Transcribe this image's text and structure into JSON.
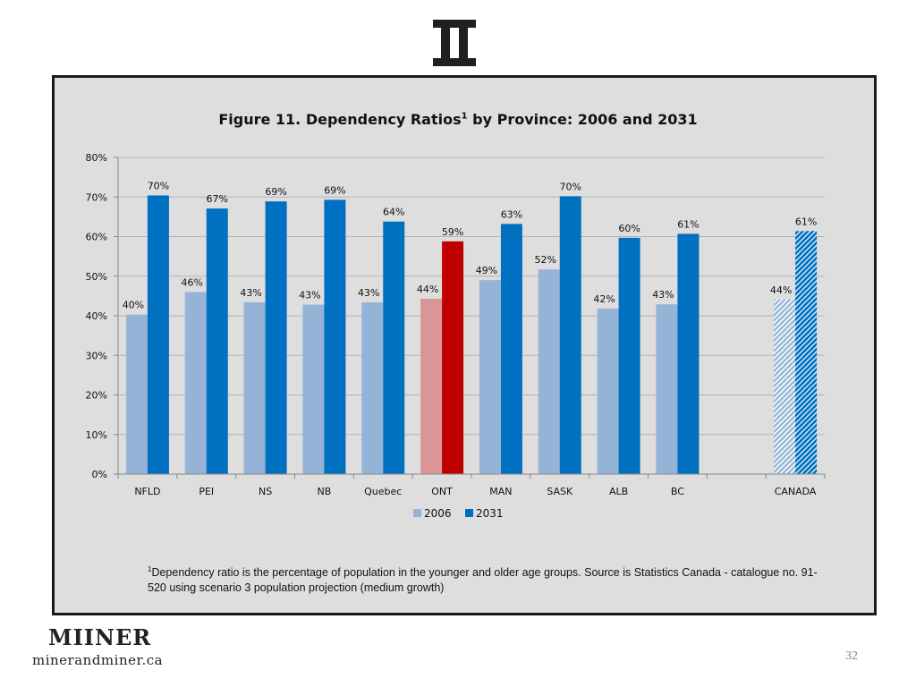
{
  "slide": {
    "page_number": "32",
    "footnote_marker": "1",
    "footnote_text": "Dependency ratio is the percentage of population in the younger and older age groups. Source is Statistics Canada - catalogue no. 91-520 using scenario 3 population projection (medium growth)",
    "brand_name": "MIINER",
    "brand_url": "minerandminer.ca",
    "logo_icon": "roman-numeral-two-logo"
  },
  "chart_data": {
    "type": "bar",
    "title_main": "Figure 11. Dependency Ratios",
    "title_superscript": "1",
    "title_tail": " by Province: 2006 and 2031",
    "xlabel": "",
    "ylabel": "",
    "ylim": [
      0,
      80
    ],
    "y_ticks": [
      "0%",
      "10%",
      "20%",
      "30%",
      "40%",
      "50%",
      "60%",
      "70%",
      "80%"
    ],
    "grid": true,
    "legend_position": "bottom",
    "categories": [
      "NFLD",
      "PEI",
      "NS",
      "NB",
      "Quebec",
      "ONT",
      "MAN",
      "SASK",
      "ALB",
      "BC",
      "",
      "CANADA"
    ],
    "series": [
      {
        "name": "2006",
        "color": "#95b3d7",
        "values": [
          40,
          46,
          43,
          43,
          43,
          44,
          49,
          52,
          42,
          43,
          null,
          44
        ],
        "labels": [
          "40%",
          "46%",
          "43%",
          "43%",
          "43%",
          "44%",
          "49%",
          "52%",
          "42%",
          "43%",
          "",
          "44%"
        ]
      },
      {
        "name": "2031",
        "color": "#0070c0",
        "values": [
          70,
          67,
          69,
          69,
          64,
          59,
          63,
          70,
          60,
          61,
          null,
          61
        ],
        "labels": [
          "70%",
          "67%",
          "69%",
          "69%",
          "64%",
          "59%",
          "63%",
          "70%",
          "60%",
          "61%",
          "",
          "61%"
        ]
      }
    ],
    "bar_values_precise": {
      "2006": [
        40.3,
        46.0,
        43.4,
        42.8,
        43.4,
        44.3,
        49.0,
        51.7,
        41.8,
        42.9,
        null,
        44.1
      ],
      "2031": [
        70.4,
        67.1,
        68.9,
        69.3,
        63.8,
        58.8,
        63.2,
        70.2,
        59.7,
        60.7,
        null,
        61.4
      ]
    },
    "highlight": {
      "category": "ONT",
      "color_2006": "#da9694",
      "color_2031": "#c00000"
    },
    "hatched_category": "CANADA"
  }
}
